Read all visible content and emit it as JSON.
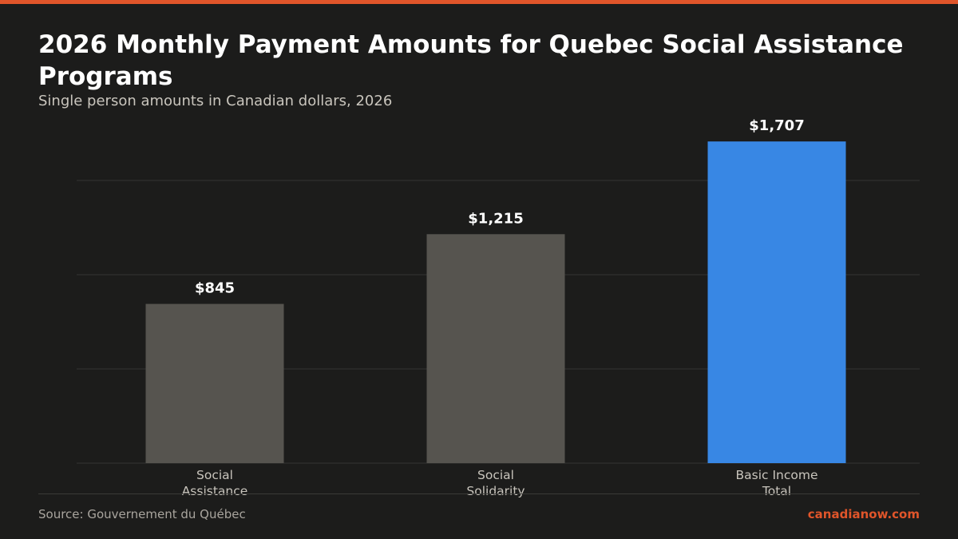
{
  "colors": {
    "accent": "#e0552a",
    "background": "#1c1c1b",
    "bar_default": "#56544f",
    "bar_highlight": "#3887e4",
    "grid": "#353533"
  },
  "header": {
    "title": "2026 Monthly Payment Amounts for Quebec Social Assistance Programs",
    "subtitle": "Single person amounts in Canadian dollars, 2026"
  },
  "footer": {
    "source": "Source: Gouvernement du Québec",
    "brand": "canadianow.com"
  },
  "chart_data": {
    "type": "bar",
    "categories": [
      [
        "Social",
        "Assistance"
      ],
      [
        "Social",
        "Solidarity"
      ],
      [
        "Basic Income",
        "Total"
      ]
    ],
    "values": [
      845,
      1215,
      1707
    ],
    "value_labels": [
      "$845",
      "$1,215",
      "$1,707"
    ],
    "highlight_index": 2,
    "ylim": [
      0,
      1800
    ],
    "grid": true,
    "xlabel": "",
    "ylabel": ""
  }
}
